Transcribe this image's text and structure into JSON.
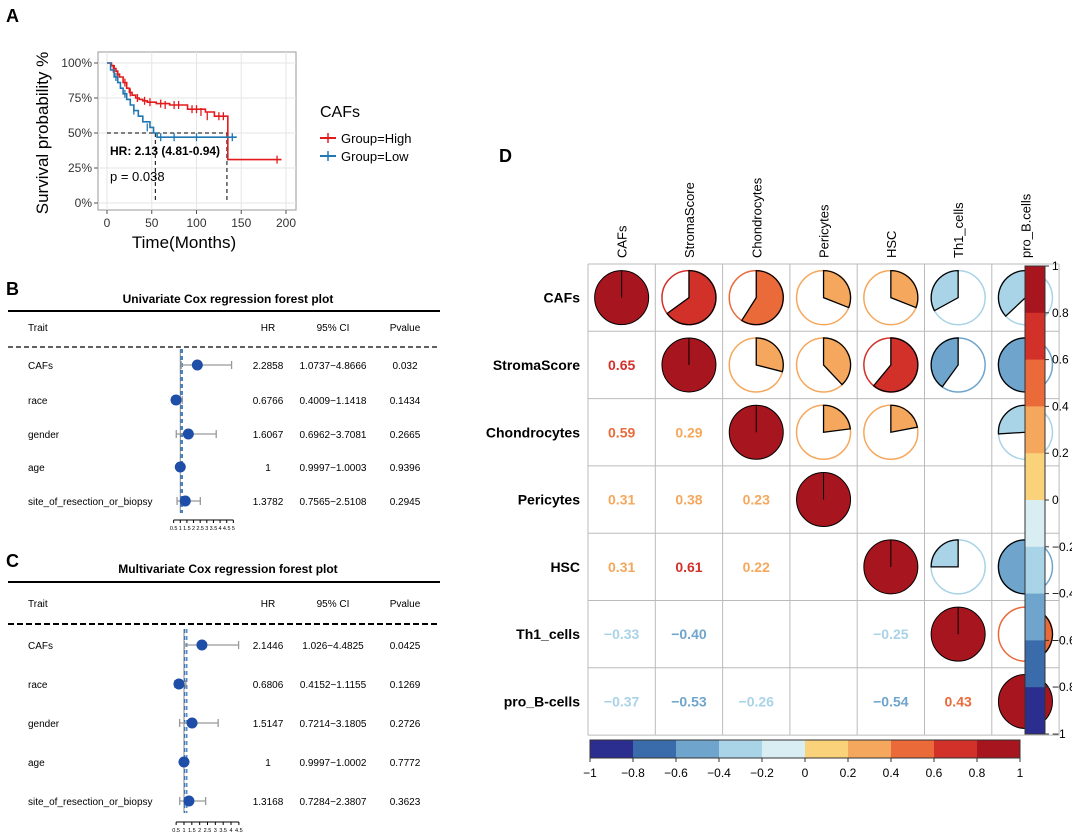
{
  "panels": {
    "a": "A",
    "b": "B",
    "c": "C",
    "d": "D"
  },
  "chart_data": [
    {
      "type": "line",
      "panel": "A",
      "title": "",
      "xlabel": "Time(Months)",
      "ylabel": "Survival probability %",
      "xlim": [
        0,
        200
      ],
      "ylim": [
        0,
        1
      ],
      "xticks": [
        "0",
        "50",
        "100",
        "150",
        "200"
      ],
      "yticks": [
        "0%",
        "25%",
        "50%",
        "75%",
        "100%"
      ],
      "yticks_values": [
        0,
        0.25,
        0.5,
        0.75,
        1.0
      ],
      "xticks_values": [
        0,
        50,
        100,
        150,
        200
      ],
      "legend_title": "CAFs",
      "annotations": {
        "hr": "HR: 2.13 (4.81-0.94)",
        "p": "p = 0.038"
      },
      "median_lines": [
        54,
        134
      ],
      "series": [
        {
          "name": "Group=High",
          "color": "#e31a1c",
          "x": [
            0,
            5,
            8,
            10,
            12,
            14,
            18,
            22,
            25,
            28,
            32,
            36,
            40,
            45,
            55,
            70,
            90,
            110,
            120,
            133,
            135,
            195
          ],
          "y": [
            1.0,
            0.98,
            0.96,
            0.94,
            0.92,
            0.9,
            0.86,
            0.82,
            0.79,
            0.77,
            0.75,
            0.74,
            0.73,
            0.72,
            0.71,
            0.7,
            0.67,
            0.65,
            0.62,
            0.62,
            0.31,
            0.31
          ],
          "censor_x": [
            7,
            12,
            20,
            26,
            34,
            42,
            48,
            60,
            65,
            75,
            80,
            95,
            100,
            105,
            112,
            125,
            130,
            190
          ],
          "censor_y": [
            0.96,
            0.92,
            0.86,
            0.79,
            0.75,
            0.73,
            0.72,
            0.71,
            0.7,
            0.7,
            0.7,
            0.67,
            0.67,
            0.65,
            0.62,
            0.62,
            0.62,
            0.31
          ]
        },
        {
          "name": "Group=Low",
          "color": "#1f78b4",
          "x": [
            0,
            4,
            8,
            12,
            15,
            18,
            22,
            26,
            30,
            35,
            40,
            48,
            52,
            56,
            145
          ],
          "y": [
            1.0,
            0.95,
            0.9,
            0.86,
            0.82,
            0.78,
            0.74,
            0.7,
            0.66,
            0.62,
            0.58,
            0.54,
            0.5,
            0.47,
            0.47
          ],
          "censor_x": [
            10,
            20,
            30,
            45,
            60,
            75,
            100,
            140
          ],
          "censor_y": [
            0.9,
            0.78,
            0.66,
            0.54,
            0.47,
            0.47,
            0.47,
            0.47
          ]
        }
      ]
    },
    {
      "type": "forest",
      "panel": "B",
      "title": "Univariate Cox regression forest plot",
      "headers": [
        "Trait",
        "HR",
        "95% CI",
        "Pvalue"
      ],
      "rows": [
        {
          "trait": "CAFs",
          "hr": "2.2858",
          "ci": "1.0737−4.8666",
          "p": "0.032",
          "hr_val": 2.2858,
          "lo": 1.0737,
          "hi": 4.8666
        },
        {
          "trait": "race",
          "hr": "0.6766",
          "ci": "0.4009−1.1418",
          "p": "0.1434",
          "hr_val": 0.6766,
          "lo": 0.4009,
          "hi": 1.1418
        },
        {
          "trait": "gender",
          "hr": "1.6067",
          "ci": "0.6962−3.7081",
          "p": "0.2665",
          "hr_val": 1.6067,
          "lo": 0.6962,
          "hi": 3.7081
        },
        {
          "trait": "age",
          "hr": "1",
          "ci": "0.9997−1.0003",
          "p": "0.9396",
          "hr_val": 1,
          "lo": 0.9997,
          "hi": 1.0003
        },
        {
          "trait": "site_of_resection_or_biopsy",
          "hr": "1.3782",
          "ci": "0.7565−2.5108",
          "p": "0.2945",
          "hr_val": 1.3782,
          "lo": 0.7565,
          "hi": 2.5108
        }
      ],
      "axis_ticks": [
        "0.5",
        "1",
        "1.5",
        "2",
        "2.5",
        "3",
        "3.5",
        "4",
        "4.5",
        "5"
      ],
      "axis_values": [
        0.5,
        1,
        1.5,
        2,
        2.5,
        3,
        3.5,
        4,
        4.5,
        5
      ],
      "xlim": [
        0.3,
        5.2
      ]
    },
    {
      "type": "forest",
      "panel": "C",
      "title": "Multivariate Cox regression forest plot",
      "headers": [
        "Trait",
        "HR",
        "95% CI",
        "Pvalue"
      ],
      "rows": [
        {
          "trait": "CAFs",
          "hr": "2.1446",
          "ci": "1.026−4.4825",
          "p": "0.0425",
          "hr_val": 2.1446,
          "lo": 1.026,
          "hi": 4.4825
        },
        {
          "trait": "race",
          "hr": "0.6806",
          "ci": "0.4152−1.1155",
          "p": "0.1269",
          "hr_val": 0.6806,
          "lo": 0.4152,
          "hi": 1.1155
        },
        {
          "trait": "gender",
          "hr": "1.5147",
          "ci": "0.7214−3.1805",
          "p": "0.2726",
          "hr_val": 1.5147,
          "lo": 0.7214,
          "hi": 3.1805
        },
        {
          "trait": "age",
          "hr": "1",
          "ci": "0.9997−1.0002",
          "p": "0.7772",
          "hr_val": 1,
          "lo": 0.9997,
          "hi": 1.0002
        },
        {
          "trait": "site_of_resection_or_biopsy",
          "hr": "1.3168",
          "ci": "0.7284−2.3807",
          "p": "0.3623",
          "hr_val": 1.3168,
          "lo": 0.7284,
          "hi": 2.3807
        }
      ],
      "axis_ticks": [
        "0.5",
        "1",
        "1.5",
        "2",
        "2.5",
        "3",
        "3.5",
        "4",
        "4.5"
      ],
      "axis_values": [
        0.5,
        1,
        1.5,
        2,
        2.5,
        3,
        3.5,
        4,
        4.5
      ],
      "xlim": [
        0.3,
        4.7
      ]
    },
    {
      "type": "heatmap",
      "panel": "D",
      "variables": [
        "CAFs",
        "StromaScore",
        "Chondrocytes",
        "Pericytes",
        "HSC",
        "Th1_cells",
        "pro_B.cells"
      ],
      "row_labels": [
        "CAFs",
        "StromaScore",
        "Chondrocytes",
        "Pericytes",
        "HSC",
        "Th1_cells",
        "pro_B-cells"
      ],
      "matrix": [
        [
          1,
          0.65,
          0.59,
          0.31,
          0.31,
          -0.33,
          -0.37
        ],
        [
          0.65,
          1,
          0.29,
          0.38,
          0.61,
          -0.4,
          -0.53
        ],
        [
          0.59,
          0.29,
          1,
          0.23,
          0.22,
          null,
          -0.26
        ],
        [
          0.31,
          0.38,
          0.23,
          1,
          null,
          null,
          null
        ],
        [
          0.31,
          0.61,
          0.22,
          null,
          1,
          -0.25,
          -0.54
        ],
        [
          -0.33,
          -0.4,
          null,
          null,
          -0.25,
          1,
          0.43
        ],
        [
          -0.37,
          -0.53,
          -0.26,
          null,
          -0.54,
          0.43,
          1
        ]
      ],
      "number_labels": [
        [
          "",
          "",
          "",
          "",
          "",
          "",
          ""
        ],
        [
          "0.65",
          "",
          "",
          "",
          "",
          "",
          ""
        ],
        [
          "0.59",
          "0.29",
          "",
          "",
          "",
          "",
          ""
        ],
        [
          "0.31",
          "0.38",
          "0.23",
          "",
          "",
          "",
          ""
        ],
        [
          "0.31",
          "0.61",
          "0.22",
          "",
          "",
          "",
          ""
        ],
        [
          "−0.33",
          "−0.40",
          "",
          "",
          "−0.25",
          "",
          ""
        ],
        [
          "−0.37",
          "−0.53",
          "−0.26",
          "",
          "−0.54",
          "0.43",
          ""
        ]
      ],
      "colorbar_ticks": [
        "1",
        "0.8",
        "0.6",
        "0.4",
        "0.2",
        "0",
        "−0.2",
        "−0.4",
        "−0.6",
        "−0.8",
        "−1"
      ],
      "colorbar_bottom_ticks": [
        "−1",
        "−0.8",
        "−0.6",
        "−0.4",
        "−0.2",
        "0",
        "0.2",
        "0.4",
        "0.6",
        "0.8",
        "1"
      ],
      "colorbar_values": [
        1,
        0.8,
        0.6,
        0.4,
        0.2,
        0,
        -0.2,
        -0.4,
        -0.6,
        -0.8,
        -1
      ],
      "palette": [
        "#2b2d8f",
        "#3a6cab",
        "#6fa5cc",
        "#a9d3e6",
        "#d9eef2",
        "#fbf3c6",
        "#fad27a",
        "#f5a85d",
        "#ea6a3a",
        "#d2312a",
        "#a7151e"
      ]
    }
  ]
}
